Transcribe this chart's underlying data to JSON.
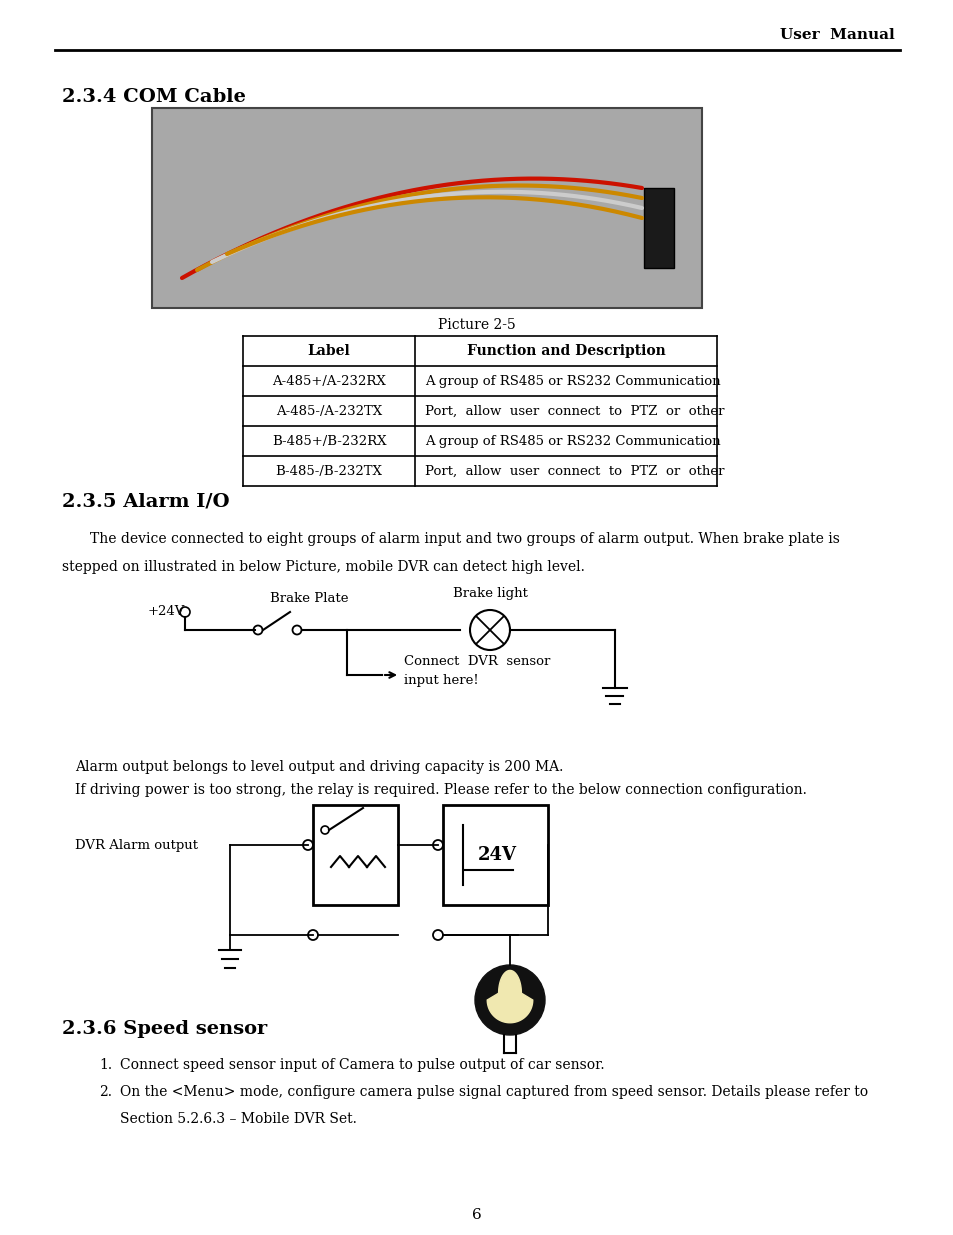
{
  "bg_color": "#ffffff",
  "header_text": "User  Manual",
  "section_234_title": "2.3.4 COM Cable",
  "picture_caption": "Picture 2-5",
  "table_headers": [
    "Label",
    "Function and Description"
  ],
  "table_rows": [
    [
      "A-485+/A-232RX",
      "A group of RS485 or RS232 Communication"
    ],
    [
      "A-485-/A-232TX",
      "Port,  allow  user  connect  to  PTZ  or  other"
    ],
    [
      "B-485+/B-232RX",
      "A group of RS485 or RS232 Communication"
    ],
    [
      "B-485-/B-232TX",
      "Port,  allow  user  connect  to  PTZ  or  other"
    ]
  ],
  "section_235_title": "2.3.5 Alarm I/O",
  "alarm_para1": "The device connected to eight groups of alarm input and two groups of alarm output. When brake plate is",
  "alarm_para2": "stepped on illustrated in below Picture, mobile DVR can detect high level.",
  "alarm_note1": "Alarm output belongs to level output and driving capacity is 200 MA.",
  "alarm_note2": "If driving power is too strong, the relay is required. Please refer to the below connection configuration.",
  "section_236_title": "2.3.6 Speed sensor",
  "speed_item1": "Connect speed sensor input of Camera to pulse output of car sensor.",
  "speed_item2a": "On the <Menu> mode, configure camera pulse signal captured from speed sensor. Details please refer to",
  "speed_item2b": "Section 5.2.6.3 – Mobile DVR Set.",
  "page_number": "6"
}
